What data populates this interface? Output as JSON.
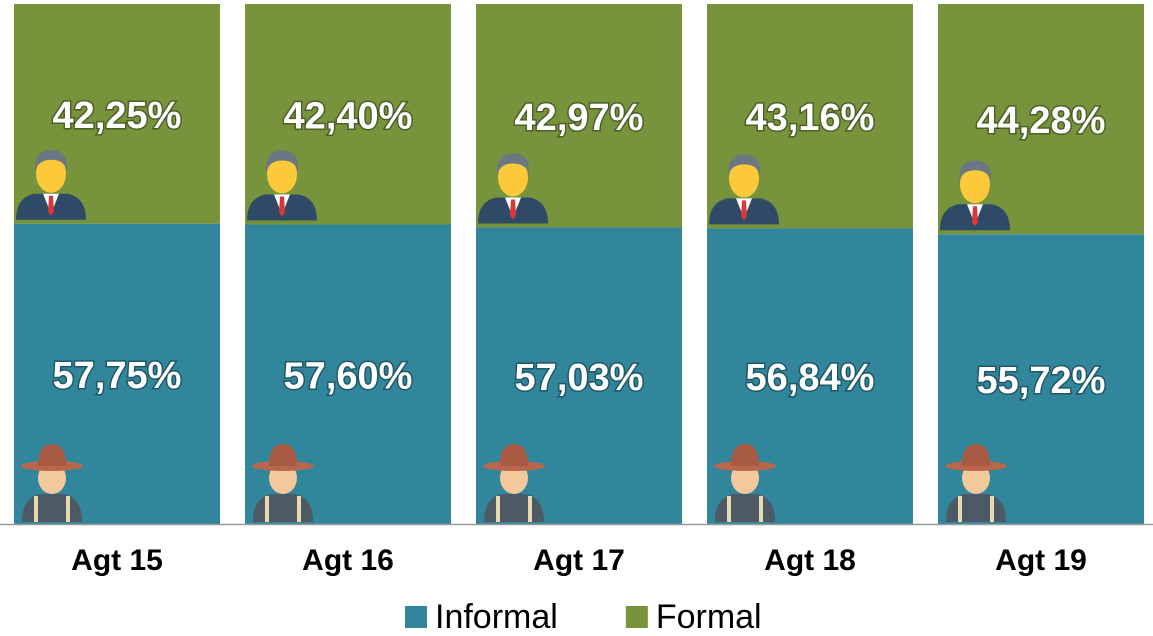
{
  "chart_data": {
    "type": "bar",
    "stacked": true,
    "categories": [
      "Agt 15",
      "Agt 16",
      "Agt 17",
      "Agt 18",
      "Agt 19"
    ],
    "series": [
      {
        "name": "Informal",
        "color": "#31869b",
        "values": [
          57.75,
          57.6,
          57.03,
          56.84,
          55.72
        ],
        "value_labels": [
          "57,75%",
          "57,60%",
          "57,03%",
          "56,84%",
          "55,72%"
        ]
      },
      {
        "name": "Formal",
        "color": "#77933c",
        "values": [
          42.25,
          42.4,
          42.97,
          43.16,
          44.28
        ],
        "value_labels": [
          "42,25%",
          "42,40%",
          "42,97%",
          "43,16%",
          "44,28%"
        ]
      }
    ],
    "ylim": [
      0,
      100
    ],
    "legend": "bottom"
  }
}
